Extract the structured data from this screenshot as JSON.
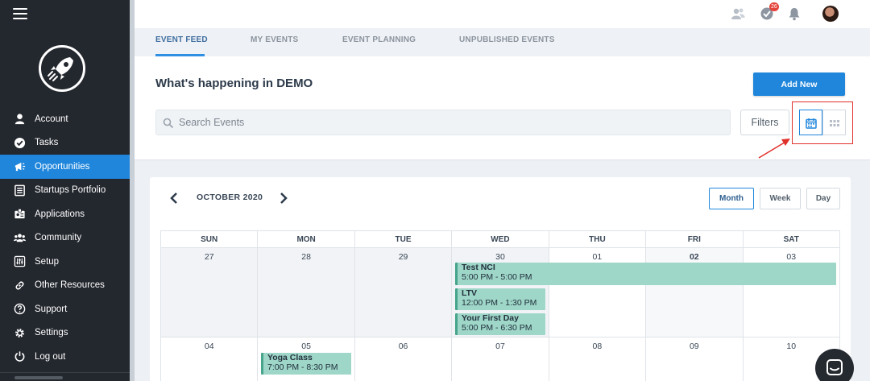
{
  "sidebar": {
    "items": [
      {
        "label": "Account",
        "icon": "user-icon"
      },
      {
        "label": "Tasks",
        "icon": "check-circle-icon"
      },
      {
        "label": "Opportunities",
        "icon": "megaphone-icon"
      },
      {
        "label": "Startups Portfolio",
        "icon": "list-icon"
      },
      {
        "label": "Applications",
        "icon": "id-card-icon"
      },
      {
        "label": "Community",
        "icon": "users-icon"
      },
      {
        "label": "Setup",
        "icon": "sliders-icon"
      },
      {
        "label": "Other Resources",
        "icon": "link-icon"
      },
      {
        "label": "Support",
        "icon": "question-icon"
      },
      {
        "label": "Settings",
        "icon": "gear-icon"
      },
      {
        "label": "Log out",
        "icon": "power-icon"
      }
    ],
    "active_item": "Opportunities"
  },
  "topbar": {
    "notification_badge": "26"
  },
  "tabs": [
    {
      "label": "EVENT FEED",
      "active": true
    },
    {
      "label": "MY EVENTS",
      "active": false
    },
    {
      "label": "EVENT PLANNING",
      "active": false
    },
    {
      "label": "UNPUBLISHED EVENTS",
      "active": false
    }
  ],
  "header": {
    "title": "What's happening in DEMO",
    "add_button": "Add New",
    "search_placeholder": "Search Events",
    "filters_button": "Filters"
  },
  "calendar": {
    "month_label": "OCTOBER 2020",
    "views": [
      "Month",
      "Week",
      "Day"
    ],
    "active_view": "Month",
    "days_of_week": [
      "SUN",
      "MON",
      "TUE",
      "WED",
      "THU",
      "FRI",
      "SAT"
    ],
    "weeks": [
      [
        "27",
        "28",
        "29",
        "30",
        "01",
        "02",
        "03"
      ],
      [
        "04",
        "05",
        "06",
        "07",
        "08",
        "09",
        "10"
      ]
    ],
    "today": "02",
    "events": [
      {
        "title": "Test NCI",
        "time": "5:00 PM - 5:00 PM"
      },
      {
        "title": "LTV",
        "time": "12:00 PM - 1:30 PM"
      },
      {
        "title": "Your First Day",
        "time": "5:00 PM - 6:30 PM"
      },
      {
        "title": "Yoga Class",
        "time": "7:00 PM - 8:30 PM"
      }
    ]
  },
  "colors": {
    "accent": "#1f86dc",
    "sidebar_bg": "#23272e",
    "event_bg": "#9ed6c8",
    "highlight_box": "#e0302a"
  }
}
